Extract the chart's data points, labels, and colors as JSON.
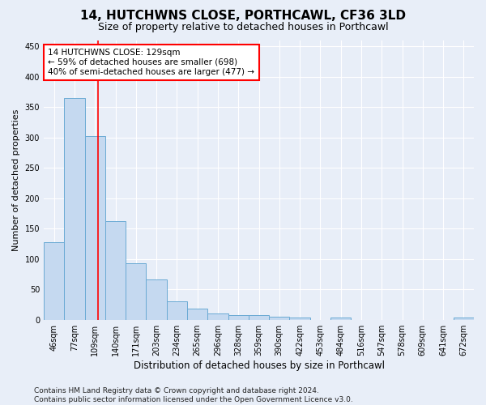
{
  "title": "14, HUTCHWNS CLOSE, PORTHCAWL, CF36 3LD",
  "subtitle": "Size of property relative to detached houses in Porthcawl",
  "xlabel": "Distribution of detached houses by size in Porthcawl",
  "ylabel": "Number of detached properties",
  "bin_labels": [
    "46sqm",
    "77sqm",
    "109sqm",
    "140sqm",
    "171sqm",
    "203sqm",
    "234sqm",
    "265sqm",
    "296sqm",
    "328sqm",
    "359sqm",
    "390sqm",
    "422sqm",
    "453sqm",
    "484sqm",
    "516sqm",
    "547sqm",
    "578sqm",
    "609sqm",
    "641sqm",
    "672sqm"
  ],
  "bar_heights": [
    128,
    365,
    303,
    163,
    93,
    67,
    30,
    18,
    10,
    8,
    8,
    5,
    4,
    0,
    3,
    0,
    0,
    0,
    0,
    0,
    3
  ],
  "bar_color": "#c5d9f0",
  "bar_edgecolor": "#6aaad4",
  "bar_linewidth": 0.7,
  "vline_x_index": 2.65,
  "vline_color": "red",
  "vline_linewidth": 1.2,
  "annotation_text": "14 HUTCHWNS CLOSE: 129sqm\n← 59% of detached houses are smaller (698)\n40% of semi-detached houses are larger (477) →",
  "annotation_box_color": "white",
  "annotation_box_edgecolor": "red",
  "annotation_fontsize": 7.5,
  "ylim": [
    0,
    460
  ],
  "yticks": [
    0,
    50,
    100,
    150,
    200,
    250,
    300,
    350,
    400,
    450
  ],
  "background_color": "#e8eef8",
  "plot_background": "#e8eef8",
  "grid_color": "#ffffff",
  "title_fontsize": 11,
  "subtitle_fontsize": 9,
  "xlabel_fontsize": 8.5,
  "ylabel_fontsize": 8,
  "tick_fontsize": 7,
  "footer": "Contains HM Land Registry data © Crown copyright and database right 2024.\nContains public sector information licensed under the Open Government Licence v3.0.",
  "footer_fontsize": 6.5
}
